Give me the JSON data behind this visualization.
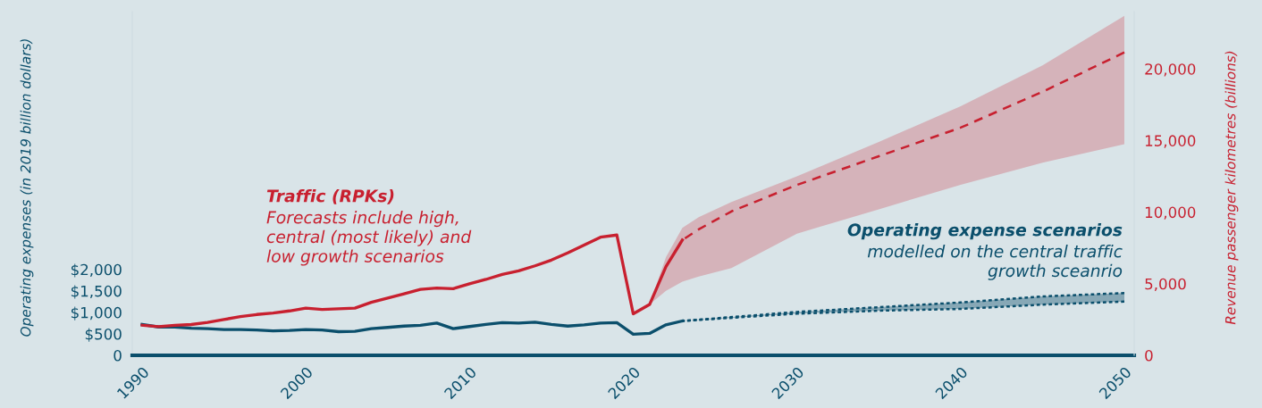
{
  "chart_data": {
    "type": "line",
    "ylabel": "Operating expenses (in 2019 billion dollars)",
    "y2label": "Revenue passenger kilometres (billions)",
    "annotations": [
      "Traffic (RPKs)",
      "Forecasts include high,\ncentral (most likely) and\nlow growth scenarios",
      "Operating expense scenarios",
      "modelled on the central traffic\ngrowth sceanrio"
    ],
    "xlim": [
      1989.4,
      2050.6
    ],
    "xticks": [
      1990,
      2000,
      2010,
      2020,
      2030,
      2040,
      2050
    ],
    "ylim": [
      0,
      8000
    ],
    "yticks": [
      {
        "value": 0,
        "label": "0"
      },
      {
        "value": 500,
        "label": "$500"
      },
      {
        "value": 1000,
        "label": "$1,000"
      },
      {
        "value": 1500,
        "label": "$1,500"
      },
      {
        "value": 2000,
        "label": "$2,000"
      }
    ],
    "y2lim": [
      0,
      24000
    ],
    "y2ticks": [
      {
        "value": 0,
        "label": "0"
      },
      {
        "value": 5000,
        "label": "5,000"
      },
      {
        "value": 10000,
        "label": "10,000"
      },
      {
        "value": 15000,
        "label": "15,000"
      },
      {
        "value": 20000,
        "label": "20,000"
      }
    ],
    "grid": false,
    "legend": false,
    "series": [
      {
        "axis": "y2",
        "color": "#c8202f",
        "line_style": "solid",
        "x": [
          1990,
          1991,
          1992,
          1993,
          1994,
          1995,
          1996,
          1997,
          1998,
          1999,
          2000,
          2001,
          2002,
          2003,
          2004,
          2005,
          2006,
          2007,
          2008,
          2009,
          2010,
          2011,
          2012,
          2013,
          2014,
          2015,
          2016,
          2017,
          2018,
          2019,
          2020,
          2021,
          2022,
          2023
        ],
        "values": [
          2100,
          2000,
          2100,
          2150,
          2300,
          2500,
          2700,
          2850,
          2950,
          3100,
          3300,
          3200,
          3250,
          3300,
          3700,
          4000,
          4300,
          4600,
          4700,
          4650,
          5000,
          5300,
          5650,
          5900,
          6250,
          6650,
          7150,
          7700,
          8250,
          8400,
          2900,
          3550,
          6200,
          8050
        ]
      },
      {
        "axis": "y2",
        "color": "#c8202f",
        "line_style": "dashed",
        "x": [
          2021,
          2022,
          2023,
          2024,
          2026,
          2030,
          2035,
          2040,
          2045,
          2050
        ],
        "values": [
          null,
          null,
          8050,
          8800,
          10050,
          11900,
          13900,
          15900,
          18400,
          21150
        ],
        "lower": [
          3550,
          4500,
          5150,
          5500,
          6100,
          8500,
          10200,
          11900,
          13450,
          14750
        ],
        "upper": [
          3550,
          6850,
          8900,
          9650,
          10700,
          12500,
          14900,
          17400,
          20250,
          23700
        ]
      },
      {
        "axis": "y",
        "color": "#0b4f6c",
        "line_style": "solid",
        "x": [
          1990,
          1991,
          1992,
          1993,
          1994,
          1995,
          1996,
          1997,
          1998,
          1999,
          2000,
          2001,
          2002,
          2003,
          2004,
          2005,
          2006,
          2007,
          2008,
          2009,
          2010,
          2011,
          2012,
          2013,
          2014,
          2015,
          2016,
          2017,
          2018,
          2019,
          2020,
          2021,
          2022,
          2023
        ],
        "values": [
          720,
          660,
          660,
          630,
          620,
          600,
          600,
          590,
          570,
          580,
          600,
          590,
          550,
          560,
          620,
          650,
          680,
          700,
          750,
          620,
          670,
          720,
          760,
          750,
          770,
          720,
          680,
          710,
          750,
          760,
          490,
          510,
          710,
          800
        ]
      },
      {
        "axis": "y",
        "color": "#0b4f6c",
        "line_style": "dotted",
        "x": [
          2023,
          2030,
          2035,
          2040,
          2045,
          2050
        ],
        "values": [
          800,
          1010,
          1120,
          1230,
          1370,
          1450
        ],
        "lower": [
          800,
          970,
          1040,
          1080,
          1180,
          1250
        ],
        "upper": [
          800,
          1010,
          1120,
          1230,
          1370,
          1450
        ]
      },
      {
        "axis": "y",
        "color": "#0b4f6c",
        "line_style": "dotted",
        "x": [
          2023,
          2030,
          2035,
          2040,
          2045,
          2050
        ],
        "values": [
          800,
          970,
          1040,
          1080,
          1180,
          1250
        ]
      }
    ]
  }
}
